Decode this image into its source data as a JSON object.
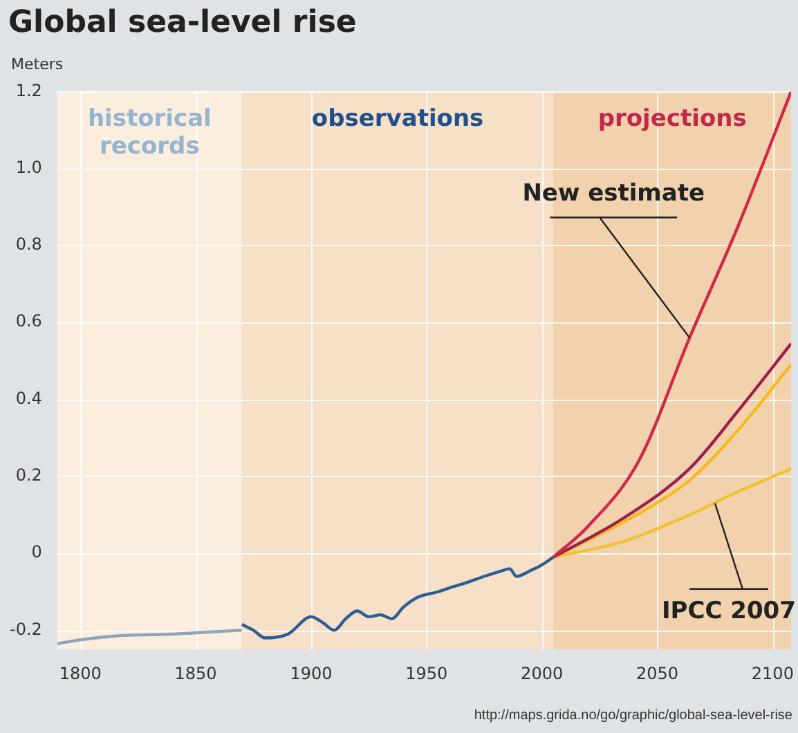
{
  "chart_data": {
    "type": "line",
    "title": "Global sea-level rise",
    "ylabel": "Meters",
    "xlim": [
      1790,
      2108
    ],
    "xticks": [
      1800,
      1850,
      1900,
      1950,
      2000,
      2050,
      2100
    ],
    "ylim": [
      -0.25,
      1.2
    ],
    "yticks": [
      -0.2,
      0,
      0.2,
      0.4,
      0.6,
      {
        "value": 0.8,
        "label": "0.8"
      },
      {
        "value": 1.0,
        "label": "1.0"
      },
      1.2
    ],
    "grid": true,
    "legend": false,
    "marker": "none",
    "line_style": "solid",
    "bands": [
      {
        "axis": "x",
        "from": 1790,
        "to": 1870,
        "label": "historical records",
        "color": "#fbeedf"
      },
      {
        "axis": "x",
        "from": 1870,
        "to": 2005,
        "label": "observations",
        "color": "#f7e0c8"
      },
      {
        "axis": "x",
        "from": 2005,
        "to": 2108,
        "label": "projections",
        "color": "#f1d2ad"
      }
    ],
    "series": [
      {
        "color": "#8ea6bb",
        "x": [
          1790,
          1800,
          1815,
          1840,
          1870
        ],
        "values": [
          -0.235,
          -0.225,
          -0.215,
          -0.21,
          -0.2
        ]
      },
      {
        "color": "#2b5f93",
        "x": [
          1870,
          1875,
          1880,
          1890,
          1900,
          1905,
          1910,
          1915,
          1920,
          1925,
          1930,
          1935,
          1940,
          1946,
          1955,
          1960,
          1967,
          1975,
          1983,
          1986,
          1989,
          1995,
          2000,
          2005
        ],
        "values": [
          -0.185,
          -0.2,
          -0.22,
          -0.21,
          -0.165,
          -0.18,
          -0.2,
          -0.17,
          -0.15,
          -0.165,
          -0.16,
          -0.17,
          -0.14,
          -0.115,
          -0.1,
          -0.09,
          -0.077,
          -0.06,
          -0.045,
          -0.04,
          -0.06,
          -0.045,
          -0.03,
          -0.01
        ]
      },
      {
        "color": "#d0284a",
        "x": [
          2005,
          2020,
          2042,
          2064,
          2085,
          2108
        ],
        "values": [
          -0.01,
          0.07,
          0.24,
          0.56,
          0.85,
          1.2
        ]
      },
      {
        "color": "#9c1f4c",
        "x": [
          2005,
          2035,
          2064,
          2085,
          2108
        ],
        "values": [
          -0.01,
          0.09,
          0.22,
          0.37,
          0.545
        ]
      },
      {
        "color": "#f5bb1c",
        "x": [
          2005,
          2035,
          2064,
          2085,
          2108
        ],
        "values": [
          -0.01,
          0.08,
          0.19,
          0.32,
          0.49
        ]
      },
      {
        "color": "#f3c030",
        "x": [
          2005,
          2035,
          2064,
          2085,
          2108
        ],
        "values": [
          -0.01,
          0.03,
          0.1,
          0.16,
          0.22
        ]
      }
    ],
    "annotations": [
      {
        "text": "New estimate",
        "x": 2064,
        "y": 0.56
      },
      {
        "text": "IPCC 2007",
        "x": 2075,
        "y": 0.13
      },
      "http://maps.grida.no/go/graphic/global-sea-level-rise"
    ]
  }
}
